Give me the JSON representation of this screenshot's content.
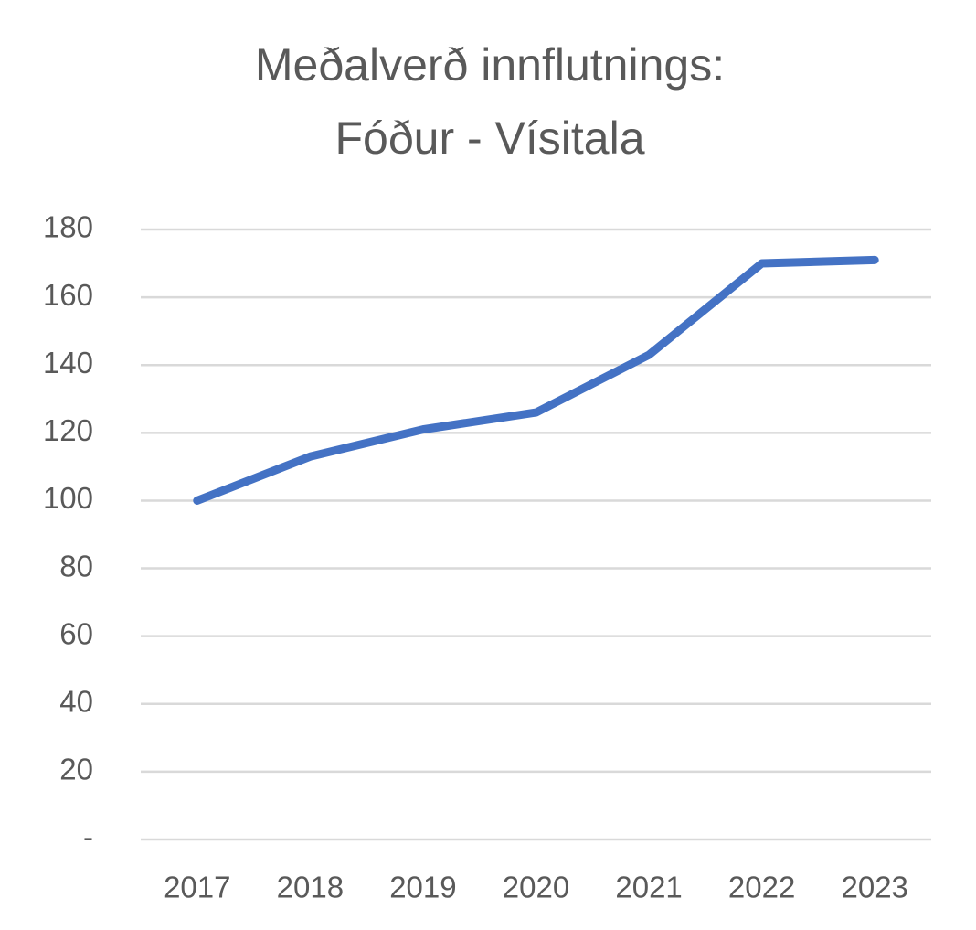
{
  "chart_data": {
    "type": "line",
    "title": [
      "Meðalverð innflutnings:",
      "Fóður - Vísitala"
    ],
    "categories": [
      "2017",
      "2018",
      "2019",
      "2020",
      "2021",
      "2022",
      "2023"
    ],
    "values": [
      100,
      113,
      121,
      126,
      143,
      170,
      171
    ],
    "color": "#4472c4",
    "ylim": [
      0,
      180
    ],
    "yticks": [
      {
        "value": 0,
        "label": "-"
      },
      20,
      40,
      60,
      80,
      100,
      120,
      140,
      160,
      180
    ],
    "grid": true
  }
}
